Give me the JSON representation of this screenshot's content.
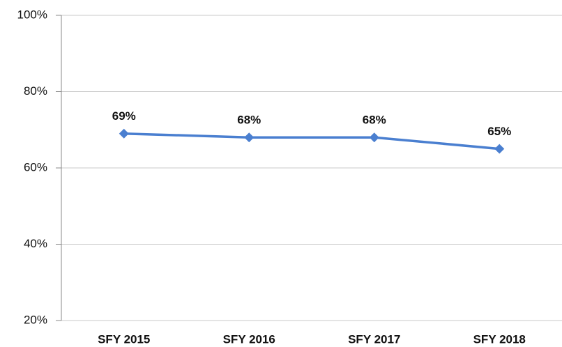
{
  "chart_data": {
    "type": "line",
    "categories": [
      "SFY 2015",
      "SFY 2016",
      "SFY 2017",
      "SFY 2018"
    ],
    "series": [
      {
        "color": "#4a7fd0",
        "values": [
          69,
          68,
          68,
          65
        ],
        "value_labels": [
          "69%",
          "68%",
          "68%",
          "65%"
        ]
      }
    ],
    "ylim": [
      20,
      100
    ],
    "yticks": [
      {
        "value": 20,
        "label": "20%"
      },
      {
        "value": 40,
        "label": "40%"
      },
      {
        "value": 60,
        "label": "60%"
      },
      {
        "value": 80,
        "label": "80%"
      },
      {
        "value": 100,
        "label": "100%"
      }
    ],
    "grid": true
  }
}
